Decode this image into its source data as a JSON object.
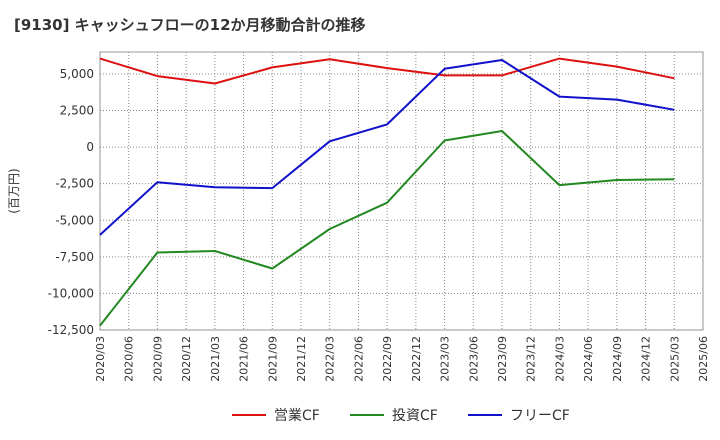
{
  "chart_data": {
    "type": "line",
    "title": "[9130]  キャッシュフローの12か月移動合計の推移",
    "ylabel": "(百万円)",
    "xlabel": "",
    "ylim": [
      -12500,
      6500
    ],
    "yticks": [
      -12500,
      -10000,
      -7500,
      -5000,
      -2500,
      0,
      2500,
      5000
    ],
    "ytick_labels": [
      "-12,500",
      "-10,000",
      "-7,500",
      "-5,000",
      "-2,500",
      "0",
      "2,500",
      "5,000"
    ],
    "categories": [
      "2020/03",
      "2020/06",
      "2020/09",
      "2020/12",
      "2021/03",
      "2021/06",
      "2021/09",
      "2021/12",
      "2022/03",
      "2022/06",
      "2022/09",
      "2022/12",
      "2023/03",
      "2023/06",
      "2023/09",
      "2023/12",
      "2024/03",
      "2024/06",
      "2024/09",
      "2024/12",
      "2025/03",
      "2025/06"
    ],
    "series": [
      {
        "name": "営業CF",
        "color": "#dd1111",
        "points": [
          [
            "2020/03",
            6050
          ],
          [
            "2020/09",
            4850
          ],
          [
            "2021/03",
            4350
          ],
          [
            "2021/09",
            5450
          ],
          [
            "2022/03",
            6000
          ],
          [
            "2022/09",
            5400
          ],
          [
            "2023/03",
            4900
          ],
          [
            "2023/09",
            4900
          ],
          [
            "2024/03",
            6050
          ],
          [
            "2024/09",
            5500
          ],
          [
            "2025/03",
            4700
          ]
        ]
      },
      {
        "name": "投資CF",
        "color": "#228822",
        "points": [
          [
            "2020/03",
            -12200
          ],
          [
            "2020/09",
            -7200
          ],
          [
            "2021/03",
            -7100
          ],
          [
            "2021/09",
            -8300
          ],
          [
            "2022/03",
            -5600
          ],
          [
            "2022/09",
            -3800
          ],
          [
            "2023/03",
            450
          ],
          [
            "2023/09",
            1100
          ],
          [
            "2024/03",
            -2600
          ],
          [
            "2024/09",
            -2250
          ],
          [
            "2025/03",
            -2200
          ]
        ]
      },
      {
        "name": "フリーCF",
        "color": "#1111cc",
        "points": [
          [
            "2020/03",
            -6000
          ],
          [
            "2020/09",
            -2400
          ],
          [
            "2021/03",
            -2750
          ],
          [
            "2021/09",
            -2800
          ],
          [
            "2022/03",
            400
          ],
          [
            "2022/09",
            1550
          ],
          [
            "2023/03",
            5350
          ],
          [
            "2023/09",
            5950
          ],
          [
            "2024/03",
            3450
          ],
          [
            "2024/09",
            3250
          ],
          [
            "2025/03",
            2550
          ]
        ]
      }
    ],
    "grid": true,
    "legend_position": "bottom-center"
  }
}
